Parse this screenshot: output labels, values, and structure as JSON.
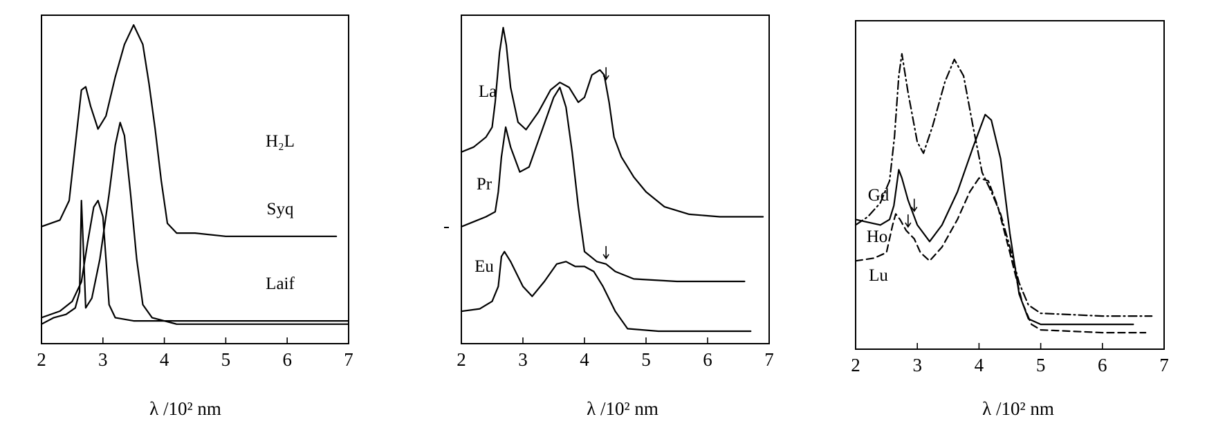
{
  "chart_data": [
    {
      "type": "line",
      "xlabel": "λ /10² nm",
      "ylabel": "",
      "xlim": [
        2,
        7
      ],
      "xticks": [
        2,
        3,
        4,
        5,
        6,
        7
      ],
      "grid": false,
      "legend": "none",
      "series": [
        {
          "name": "H₂L",
          "points": [
            [
              2.0,
              0.3
            ],
            [
              2.3,
              0.32
            ],
            [
              2.45,
              0.38
            ],
            [
              2.55,
              0.55
            ],
            [
              2.65,
              0.72
            ],
            [
              2.72,
              0.73
            ],
            [
              2.8,
              0.67
            ],
            [
              2.92,
              0.6
            ],
            [
              3.05,
              0.64
            ],
            [
              3.2,
              0.76
            ],
            [
              3.35,
              0.86
            ],
            [
              3.5,
              0.92
            ],
            [
              3.65,
              0.86
            ],
            [
              3.75,
              0.74
            ],
            [
              3.85,
              0.6
            ],
            [
              3.95,
              0.44
            ],
            [
              4.05,
              0.31
            ],
            [
              4.2,
              0.28
            ],
            [
              4.5,
              0.28
            ],
            [
              5.0,
              0.27
            ],
            [
              6.0,
              0.27
            ],
            [
              6.8,
              0.27
            ]
          ]
        },
        {
          "name": "Syq",
          "points": [
            [
              2.0,
              0.0
            ],
            [
              2.2,
              0.02
            ],
            [
              2.4,
              0.03
            ],
            [
              2.55,
              0.05
            ],
            [
              2.62,
              0.1
            ],
            [
              2.65,
              0.38
            ],
            [
              2.68,
              0.24
            ],
            [
              2.72,
              0.05
            ],
            [
              2.82,
              0.08
            ],
            [
              2.95,
              0.2
            ],
            [
              3.1,
              0.4
            ],
            [
              3.2,
              0.55
            ],
            [
              3.28,
              0.62
            ],
            [
              3.35,
              0.58
            ],
            [
              3.45,
              0.4
            ],
            [
              3.55,
              0.2
            ],
            [
              3.65,
              0.06
            ],
            [
              3.8,
              0.02
            ],
            [
              4.2,
              0.0
            ],
            [
              5.0,
              0.0
            ],
            [
              6.0,
              0.0
            ],
            [
              7.0,
              0.0
            ]
          ]
        },
        {
          "name": "Laif",
          "points": [
            [
              2.0,
              0.02
            ],
            [
              2.3,
              0.04
            ],
            [
              2.5,
              0.07
            ],
            [
              2.65,
              0.13
            ],
            [
              2.75,
              0.25
            ],
            [
              2.85,
              0.36
            ],
            [
              2.92,
              0.38
            ],
            [
              3.0,
              0.33
            ],
            [
              3.05,
              0.2
            ],
            [
              3.1,
              0.06
            ],
            [
              3.2,
              0.02
            ],
            [
              3.5,
              0.01
            ],
            [
              4.5,
              0.01
            ],
            [
              6.0,
              0.01
            ],
            [
              7.0,
              0.01
            ]
          ]
        }
      ],
      "annotations": []
    },
    {
      "type": "line",
      "xlabel": "λ /10² nm",
      "ylabel": "",
      "xlim": [
        2,
        7
      ],
      "xticks": [
        2,
        3,
        4,
        5,
        6,
        7
      ],
      "grid": false,
      "legend": "none",
      "series": [
        {
          "name": "La",
          "points": [
            [
              2.0,
              0.72
            ],
            [
              2.2,
              0.74
            ],
            [
              2.4,
              0.78
            ],
            [
              2.5,
              0.82
            ],
            [
              2.55,
              0.92
            ],
            [
              2.62,
              1.12
            ],
            [
              2.68,
              1.22
            ],
            [
              2.73,
              1.15
            ],
            [
              2.8,
              0.98
            ],
            [
              2.92,
              0.84
            ],
            [
              3.05,
              0.81
            ],
            [
              3.25,
              0.88
            ],
            [
              3.45,
              0.97
            ],
            [
              3.6,
              1.0
            ],
            [
              3.75,
              0.98
            ],
            [
              3.9,
              0.92
            ],
            [
              4.0,
              0.94
            ],
            [
              4.12,
              1.03
            ],
            [
              4.25,
              1.05
            ],
            [
              4.32,
              1.03
            ],
            [
              4.4,
              0.92
            ],
            [
              4.48,
              0.78
            ],
            [
              4.6,
              0.7
            ],
            [
              4.8,
              0.62
            ],
            [
              5.0,
              0.56
            ],
            [
              5.3,
              0.5
            ],
            [
              5.7,
              0.47
            ],
            [
              6.2,
              0.46
            ],
            [
              6.9,
              0.46
            ]
          ]
        },
        {
          "name": "Pr",
          "points": [
            [
              2.0,
              0.42
            ],
            [
              2.2,
              0.44
            ],
            [
              2.4,
              0.46
            ],
            [
              2.55,
              0.48
            ],
            [
              2.6,
              0.56
            ],
            [
              2.65,
              0.7
            ],
            [
              2.72,
              0.82
            ],
            [
              2.8,
              0.74
            ],
            [
              2.95,
              0.64
            ],
            [
              3.1,
              0.66
            ],
            [
              3.3,
              0.8
            ],
            [
              3.5,
              0.94
            ],
            [
              3.6,
              0.98
            ],
            [
              3.7,
              0.9
            ],
            [
              3.8,
              0.72
            ],
            [
              3.9,
              0.5
            ],
            [
              4.0,
              0.32
            ],
            [
              4.2,
              0.28
            ],
            [
              4.35,
              0.27
            ],
            [
              4.5,
              0.24
            ],
            [
              4.8,
              0.21
            ],
            [
              5.5,
              0.2
            ],
            [
              6.6,
              0.2
            ]
          ]
        },
        {
          "name": "Eu",
          "points": [
            [
              2.0,
              0.08
            ],
            [
              2.3,
              0.09
            ],
            [
              2.5,
              0.12
            ],
            [
              2.6,
              0.18
            ],
            [
              2.65,
              0.3
            ],
            [
              2.7,
              0.32
            ],
            [
              2.8,
              0.28
            ],
            [
              3.0,
              0.18
            ],
            [
              3.15,
              0.14
            ],
            [
              3.35,
              0.2
            ],
            [
              3.55,
              0.27
            ],
            [
              3.7,
              0.28
            ],
            [
              3.85,
              0.26
            ],
            [
              4.0,
              0.26
            ],
            [
              4.15,
              0.24
            ],
            [
              4.3,
              0.18
            ],
            [
              4.5,
              0.08
            ],
            [
              4.7,
              0.01
            ],
            [
              5.2,
              0.0
            ],
            [
              6.0,
              0.0
            ],
            [
              6.7,
              0.0
            ]
          ]
        }
      ],
      "annotations": [
        {
          "type": "arrow",
          "x": 4.35,
          "series": "La"
        },
        {
          "type": "arrow",
          "x": 4.35,
          "series": "Pr"
        }
      ]
    },
    {
      "type": "line",
      "xlabel": "λ /10² nm",
      "ylabel": "",
      "xlim": [
        2,
        7
      ],
      "xticks": [
        2,
        3,
        4,
        5,
        6,
        7
      ],
      "grid": false,
      "legend": "none",
      "series": [
        {
          "name": "Gd",
          "style": "dash-dot",
          "points": [
            [
              2.0,
              0.38
            ],
            [
              2.2,
              0.41
            ],
            [
              2.4,
              0.46
            ],
            [
              2.55,
              0.54
            ],
            [
              2.63,
              0.7
            ],
            [
              2.7,
              0.92
            ],
            [
              2.75,
              1.0
            ],
            [
              2.85,
              0.86
            ],
            [
              3.0,
              0.68
            ],
            [
              3.1,
              0.64
            ],
            [
              3.25,
              0.74
            ],
            [
              3.45,
              0.9
            ],
            [
              3.6,
              0.98
            ],
            [
              3.75,
              0.92
            ],
            [
              3.9,
              0.74
            ],
            [
              4.05,
              0.57
            ],
            [
              4.2,
              0.5
            ],
            [
              4.35,
              0.42
            ],
            [
              4.5,
              0.3
            ],
            [
              4.65,
              0.17
            ],
            [
              4.8,
              0.09
            ],
            [
              5.0,
              0.06
            ],
            [
              6.0,
              0.05
            ],
            [
              6.8,
              0.05
            ]
          ]
        },
        {
          "name": "Ho",
          "style": "solid",
          "points": [
            [
              2.0,
              0.4
            ],
            [
              2.2,
              0.39
            ],
            [
              2.4,
              0.38
            ],
            [
              2.55,
              0.4
            ],
            [
              2.62,
              0.45
            ],
            [
              2.7,
              0.58
            ],
            [
              2.75,
              0.55
            ],
            [
              2.85,
              0.47
            ],
            [
              3.0,
              0.38
            ],
            [
              3.2,
              0.32
            ],
            [
              3.4,
              0.38
            ],
            [
              3.65,
              0.5
            ],
            [
              3.9,
              0.66
            ],
            [
              4.1,
              0.78
            ],
            [
              4.2,
              0.76
            ],
            [
              4.35,
              0.62
            ],
            [
              4.5,
              0.35
            ],
            [
              4.65,
              0.13
            ],
            [
              4.8,
              0.04
            ],
            [
              5.0,
              0.02
            ],
            [
              6.0,
              0.02
            ],
            [
              6.5,
              0.02
            ]
          ]
        },
        {
          "name": "Lu",
          "style": "dashed",
          "points": [
            [
              2.0,
              0.25
            ],
            [
              2.3,
              0.26
            ],
            [
              2.5,
              0.28
            ],
            [
              2.6,
              0.38
            ],
            [
              2.65,
              0.42
            ],
            [
              2.72,
              0.4
            ],
            [
              2.82,
              0.36
            ],
            [
              2.95,
              0.33
            ],
            [
              3.05,
              0.28
            ],
            [
              3.2,
              0.25
            ],
            [
              3.4,
              0.3
            ],
            [
              3.65,
              0.4
            ],
            [
              3.85,
              0.5
            ],
            [
              4.0,
              0.55
            ],
            [
              4.15,
              0.54
            ],
            [
              4.3,
              0.45
            ],
            [
              4.5,
              0.28
            ],
            [
              4.7,
              0.1
            ],
            [
              4.85,
              0.02
            ],
            [
              5.0,
              0.0
            ],
            [
              6.0,
              -0.01
            ],
            [
              6.7,
              -0.01
            ]
          ]
        }
      ],
      "annotations": [
        {
          "type": "arrow",
          "x": 2.95,
          "series": "Ho"
        },
        {
          "type": "arrow",
          "x": 2.85,
          "series": "Lu"
        }
      ]
    }
  ]
}
